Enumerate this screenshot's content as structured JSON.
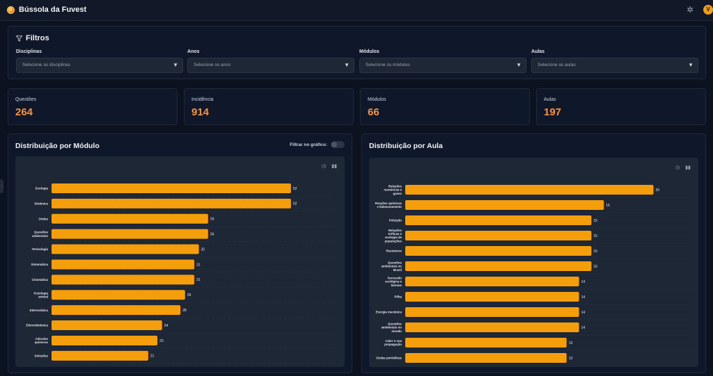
{
  "app": {
    "title": "Bússola da Fuvest",
    "user_initial": "V"
  },
  "filters": {
    "title": "Filtros",
    "groups": [
      {
        "label": "Disciplinas",
        "placeholder": "Selecione as disciplinas"
      },
      {
        "label": "Anos",
        "placeholder": "Selecione os anos"
      },
      {
        "label": "Módulos",
        "placeholder": "Selecione os módulos"
      },
      {
        "label": "Aulas",
        "placeholder": "Selecione as aulas"
      }
    ]
  },
  "stats": [
    {
      "label": "Questões",
      "value": "264"
    },
    {
      "label": "Incidência",
      "value": "914"
    },
    {
      "label": "Módulos",
      "value": "66"
    },
    {
      "label": "Aulas",
      "value": "197"
    }
  ],
  "module_chart": {
    "title": "Distribuição por Módulo",
    "toggle_label": "Filtrar no gráfico:",
    "toggle_on": false
  },
  "aula_chart": {
    "title": "Distribuição por Aula"
  },
  "chart_data": [
    {
      "type": "bar",
      "orientation": "horizontal",
      "title": "Distribuição por Módulo",
      "bar_color": "#f59e0b",
      "categories": [
        "Ecologia",
        "Dinâmica",
        "Ondas",
        "Questões ambientais",
        "Termologia",
        "Sistemática",
        "Cinemática",
        "Fisiologia animal",
        "Eletrostática",
        "Eletrodinâmica",
        "Cálculos químicos",
        "Soluções"
      ],
      "values": [
        52,
        52,
        34,
        34,
        32,
        31,
        31,
        29,
        28,
        24,
        23,
        21
      ],
      "xlim": [
        0,
        62
      ]
    },
    {
      "type": "bar",
      "orientation": "horizontal",
      "title": "Distribuição por Aula",
      "bar_color": "#f59e0b",
      "categories": [
        "Relações numéricas e gases",
        "Reações químicas e balanceamento",
        "Poluição",
        "Relações tróficas e ecologia de populações",
        "Resistores",
        "Questões ambientais no Brasil",
        "Sucessão ecológica e biomas",
        "Pilha",
        "Energia mecânica",
        "Questões ambientais no mundo",
        "Calor e sua propagação",
        "Ondas periódicas"
      ],
      "values": [
        20,
        16,
        15,
        15,
        15,
        15,
        14,
        14,
        14,
        14,
        13,
        13
      ],
      "xlim": [
        0,
        23
      ]
    }
  ]
}
